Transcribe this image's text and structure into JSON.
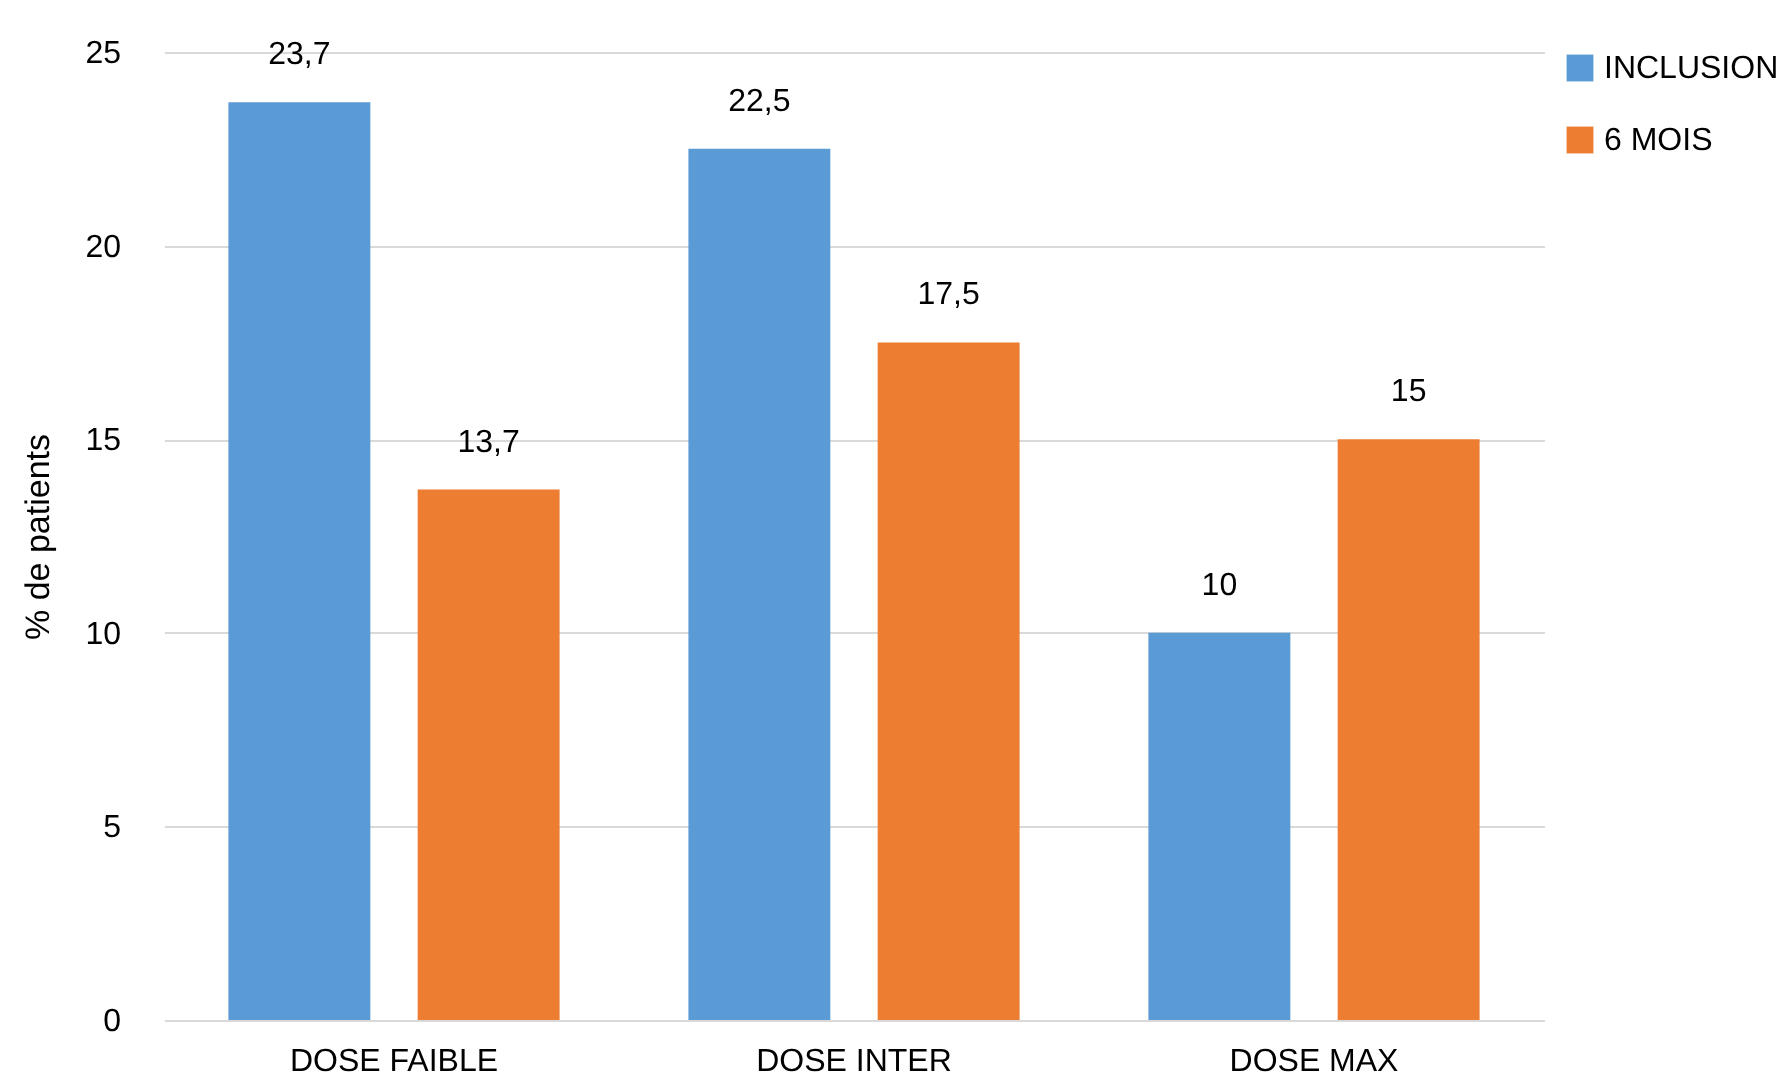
{
  "chart_data": {
    "type": "bar",
    "ylabel": "% de patients",
    "categories": [
      "DOSE FAIBLE",
      "DOSE INTER",
      "DOSE MAX"
    ],
    "series": [
      {
        "name": "INCLUSION",
        "color": "#5b9bd5",
        "values": [
          23.7,
          22.5,
          10
        ],
        "value_labels": [
          "23,7",
          "22,5",
          "10"
        ]
      },
      {
        "name": "6 MOIS",
        "color": "#ed7d31",
        "values": [
          13.7,
          17.5,
          15
        ],
        "value_labels": [
          "13,7",
          "17,5",
          "15"
        ]
      }
    ],
    "ylim": [
      0,
      25
    ],
    "yticks": [
      0,
      5,
      10,
      15,
      20,
      25
    ],
    "grid": "y",
    "legend": "right"
  }
}
